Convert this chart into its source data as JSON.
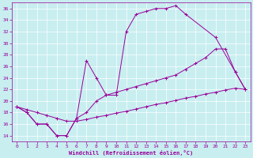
{
  "xlabel": "Windchill (Refroidissement éolien,°C)",
  "bg_color": "#c8eef0",
  "line_color": "#990099",
  "grid_color": "#ffffff",
  "xlim": [
    -0.5,
    23.5
  ],
  "ylim": [
    13,
    37
  ],
  "xticks": [
    0,
    1,
    2,
    3,
    4,
    5,
    6,
    7,
    8,
    9,
    10,
    11,
    12,
    13,
    14,
    15,
    16,
    17,
    18,
    19,
    20,
    21,
    22,
    23
  ],
  "yticks": [
    14,
    16,
    18,
    20,
    22,
    24,
    26,
    28,
    30,
    32,
    34,
    36
  ],
  "line_a_x": [
    0,
    1,
    2,
    3,
    4,
    5,
    6,
    7,
    8,
    9,
    10,
    11,
    12,
    13,
    14,
    15,
    16,
    17,
    18,
    19,
    20,
    21,
    22,
    23
  ],
  "line_a_y": [
    19,
    18.5,
    18,
    17.5,
    17,
    16.5,
    16.5,
    16.8,
    17.2,
    17.5,
    17.9,
    18.2,
    18.6,
    19.0,
    19.4,
    19.7,
    20.1,
    20.5,
    20.8,
    21.2,
    21.5,
    21.9,
    22.2,
    22.0
  ],
  "line_b_x": [
    0,
    1,
    2,
    3,
    4,
    5,
    6,
    7,
    8,
    9,
    10,
    11,
    12,
    13,
    14,
    15,
    16,
    17,
    18,
    19,
    20,
    21,
    22,
    23
  ],
  "line_b_y": [
    19,
    18,
    16,
    16,
    14,
    14,
    17,
    18,
    20,
    21,
    21.5,
    22,
    22.5,
    23,
    23.5,
    24,
    24.5,
    25.5,
    26.5,
    27.5,
    29,
    29,
    25,
    22
  ],
  "line_c_x": [
    0,
    1,
    2,
    3,
    4,
    5,
    6,
    7,
    8,
    9,
    10,
    11,
    12,
    13,
    14,
    15,
    16,
    17,
    20,
    22,
    23
  ],
  "line_c_y": [
    19,
    18,
    16,
    16,
    14,
    14,
    17,
    27,
    24,
    21,
    21,
    32,
    35,
    35.5,
    36,
    36,
    36.5,
    35,
    31,
    25,
    22
  ],
  "tick_fontsize": 4.5,
  "xlabel_fontsize": 5.0
}
